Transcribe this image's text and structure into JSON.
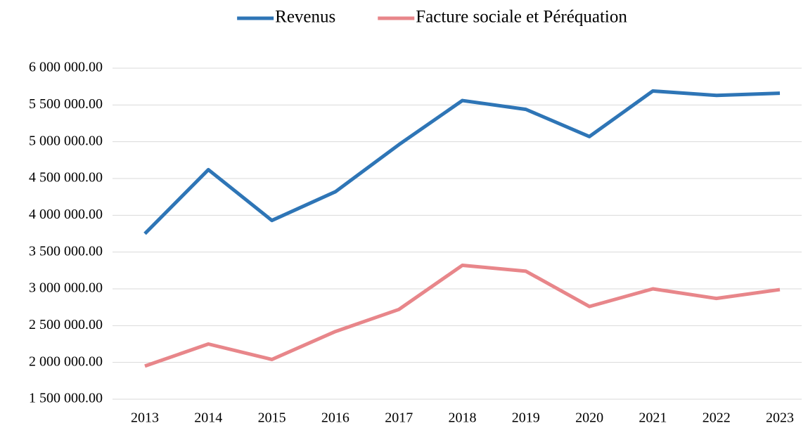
{
  "chart_data": {
    "type": "line",
    "categories": [
      "2013",
      "2014",
      "2015",
      "2016",
      "2017",
      "2018",
      "2019",
      "2020",
      "2021",
      "2022",
      "2023"
    ],
    "series": [
      {
        "name": "Revenus",
        "color": "#2e75b6",
        "values": [
          3750000,
          4620000,
          3930000,
          4320000,
          4960000,
          5560000,
          5440000,
          5070000,
          5690000,
          5630000,
          5660000
        ]
      },
      {
        "name": "Facture sociale et Péréquation",
        "color": "#e8868a",
        "values": [
          1950000,
          2250000,
          2040000,
          2420000,
          2720000,
          3320000,
          3240000,
          2760000,
          3000000,
          2870000,
          2990000
        ]
      }
    ],
    "ylim": [
      1500000,
      6000000
    ],
    "yticks": [
      {
        "value": 1500000,
        "label": "1 500 000.00"
      },
      {
        "value": 2000000,
        "label": "2 000 000.00"
      },
      {
        "value": 2500000,
        "label": "2 500 000.00"
      },
      {
        "value": 3000000,
        "label": "3 000 000.00"
      },
      {
        "value": 3500000,
        "label": "3 500 000.00"
      },
      {
        "value": 4000000,
        "label": "4 000 000.00"
      },
      {
        "value": 4500000,
        "label": "4 500 000.00"
      },
      {
        "value": 5000000,
        "label": "5 000 000.00"
      },
      {
        "value": 5500000,
        "label": "5 500 000.00"
      },
      {
        "value": 6000000,
        "label": "6 000 000.00"
      }
    ],
    "grid": true,
    "legend": "top"
  }
}
